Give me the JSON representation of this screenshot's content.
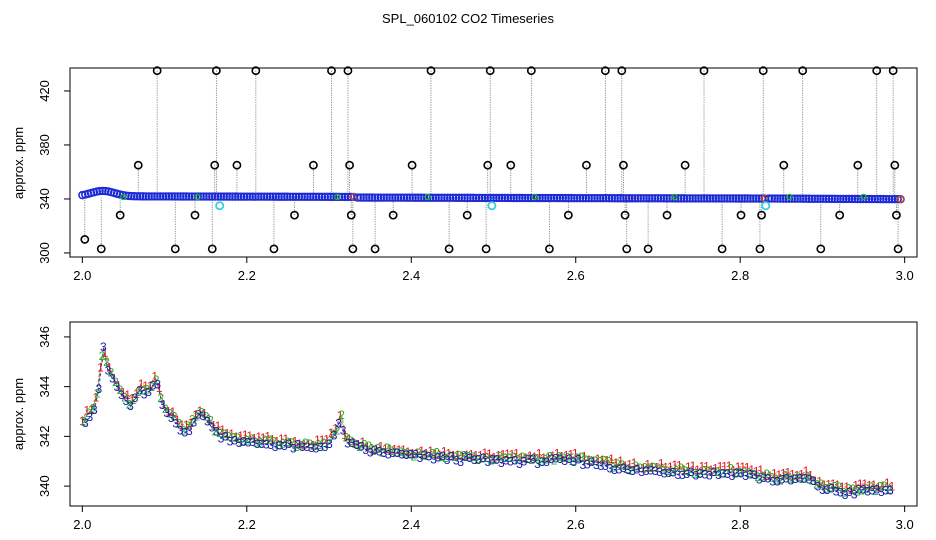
{
  "title": "SPL_060102  CO2 Timeseries",
  "chart_data": [
    {
      "type": "scatter",
      "panel": "top",
      "title": "SPL_060102  CO2 Timeseries",
      "xlabel": "",
      "ylabel": "approx. ppm",
      "xlim": [
        1.985,
        3.015
      ],
      "ylim": [
        297,
        437
      ],
      "xticks": [
        2.0,
        2.2,
        2.4,
        2.6,
        2.8,
        3.0
      ],
      "xtick_labels": [
        "2.0",
        "2.2",
        "2.4",
        "2.6",
        "2.8",
        "3.0"
      ],
      "yticks": [
        300,
        340,
        380,
        420
      ],
      "ytick_labels": [
        "300",
        "340",
        "380",
        "420"
      ],
      "segments": [
        {
          "x0": 2.0,
          "x1": 2.33,
          "y0": 342,
          "y1": 341.5
        },
        {
          "x0": 2.335,
          "x1": 2.665,
          "y0": 341,
          "y1": 340.5
        },
        {
          "x0": 2.665,
          "x1": 2.83,
          "y0": 340.5,
          "y1": 340.3
        },
        {
          "x0": 2.835,
          "x1": 2.995,
          "y0": 340.3,
          "y1": 339.8
        }
      ],
      "bump": {
        "x": 2.025,
        "y": 346
      },
      "outliers": [
        {
          "x": 2.003,
          "y": 310
        },
        {
          "x": 2.023,
          "y": 303
        },
        {
          "x": 2.046,
          "y": 328
        },
        {
          "x": 2.068,
          "y": 365
        },
        {
          "x": 2.091,
          "y": 435
        },
        {
          "x": 2.113,
          "y": 303
        },
        {
          "x": 2.137,
          "y": 328
        },
        {
          "x": 2.158,
          "y": 303
        },
        {
          "x": 2.161,
          "y": 365
        },
        {
          "x": 2.163,
          "y": 435
        },
        {
          "x": 2.188,
          "y": 365
        },
        {
          "x": 2.211,
          "y": 435
        },
        {
          "x": 2.233,
          "y": 303
        },
        {
          "x": 2.258,
          "y": 328
        },
        {
          "x": 2.281,
          "y": 365
        },
        {
          "x": 2.303,
          "y": 435
        },
        {
          "x": 2.323,
          "y": 435
        },
        {
          "x": 2.325,
          "y": 365
        },
        {
          "x": 2.327,
          "y": 328
        },
        {
          "x": 2.329,
          "y": 303
        },
        {
          "x": 2.356,
          "y": 303
        },
        {
          "x": 2.378,
          "y": 328
        },
        {
          "x": 2.401,
          "y": 365
        },
        {
          "x": 2.424,
          "y": 435
        },
        {
          "x": 2.446,
          "y": 303
        },
        {
          "x": 2.468,
          "y": 328
        },
        {
          "x": 2.491,
          "y": 303
        },
        {
          "x": 2.493,
          "y": 365
        },
        {
          "x": 2.496,
          "y": 435
        },
        {
          "x": 2.521,
          "y": 365
        },
        {
          "x": 2.546,
          "y": 435
        },
        {
          "x": 2.568,
          "y": 303
        },
        {
          "x": 2.591,
          "y": 328
        },
        {
          "x": 2.613,
          "y": 365
        },
        {
          "x": 2.636,
          "y": 435
        },
        {
          "x": 2.656,
          "y": 435
        },
        {
          "x": 2.658,
          "y": 365
        },
        {
          "x": 2.66,
          "y": 328
        },
        {
          "x": 2.662,
          "y": 303
        },
        {
          "x": 2.688,
          "y": 303
        },
        {
          "x": 2.711,
          "y": 328
        },
        {
          "x": 2.733,
          "y": 365
        },
        {
          "x": 2.756,
          "y": 435
        },
        {
          "x": 2.778,
          "y": 303
        },
        {
          "x": 2.801,
          "y": 328
        },
        {
          "x": 2.824,
          "y": 303
        },
        {
          "x": 2.826,
          "y": 328
        },
        {
          "x": 2.828,
          "y": 435
        },
        {
          "x": 2.853,
          "y": 365
        },
        {
          "x": 2.876,
          "y": 435
        },
        {
          "x": 2.898,
          "y": 303
        },
        {
          "x": 2.921,
          "y": 328
        },
        {
          "x": 2.943,
          "y": 365
        },
        {
          "x": 2.966,
          "y": 435
        },
        {
          "x": 2.986,
          "y": 435
        },
        {
          "x": 2.988,
          "y": 365
        },
        {
          "x": 2.99,
          "y": 328
        },
        {
          "x": 2.992,
          "y": 303
        }
      ],
      "highlights": [
        {
          "x": 2.167,
          "y": 335
        },
        {
          "x": 2.498,
          "y": 335
        },
        {
          "x": 2.831,
          "y": 335
        }
      ]
    },
    {
      "type": "scatter",
      "panel": "bottom",
      "xlabel": "",
      "ylabel": "approx. ppm",
      "xlim": [
        1.985,
        3.015
      ],
      "ylim": [
        339.2,
        346.6
      ],
      "xticks": [
        2.0,
        2.2,
        2.4,
        2.6,
        2.8,
        3.0
      ],
      "xtick_labels": [
        "2.0",
        "2.2",
        "2.4",
        "2.6",
        "2.8",
        "3.0"
      ],
      "yticks": [
        340,
        342,
        344,
        346
      ],
      "ytick_labels": [
        "340",
        "342",
        "344",
        "346"
      ],
      "series": [
        {
          "name": "1",
          "marker": "1",
          "color": "#e8141e"
        },
        {
          "name": "2",
          "marker": "2",
          "color": "#1fb81f"
        },
        {
          "name": "3",
          "marker": "3",
          "color": "#1a1ab4"
        }
      ],
      "x": [
        2.0,
        2.01,
        2.015,
        2.02,
        2.025,
        2.03,
        2.04,
        2.05,
        2.06,
        2.07,
        2.08,
        2.09,
        2.1,
        2.11,
        2.12,
        2.13,
        2.14,
        2.15,
        2.16,
        2.17,
        2.18,
        2.2,
        2.22,
        2.25,
        2.28,
        2.3,
        2.31,
        2.315,
        2.318,
        2.33,
        2.35,
        2.4,
        2.45,
        2.5,
        2.55,
        2.6,
        2.64,
        2.665,
        2.7,
        2.75,
        2.8,
        2.83,
        2.85,
        2.88,
        2.9,
        2.93,
        2.95,
        2.98,
        2.99
      ],
      "y": [
        342.6,
        343.0,
        343.2,
        344.0,
        345.7,
        344.8,
        344.2,
        343.6,
        343.3,
        343.9,
        343.8,
        344.3,
        343.0,
        342.8,
        342.3,
        342.4,
        342.9,
        342.9,
        342.3,
        342.1,
        342.0,
        341.8,
        341.8,
        341.7,
        341.6,
        341.8,
        342.3,
        343.0,
        342.0,
        341.7,
        341.5,
        341.3,
        341.2,
        341.1,
        341.1,
        341.1,
        340.9,
        340.7,
        340.7,
        340.6,
        340.6,
        340.4,
        340.3,
        340.4,
        340.0,
        339.8,
        339.9,
        339.9,
        339.9
      ]
    }
  ]
}
